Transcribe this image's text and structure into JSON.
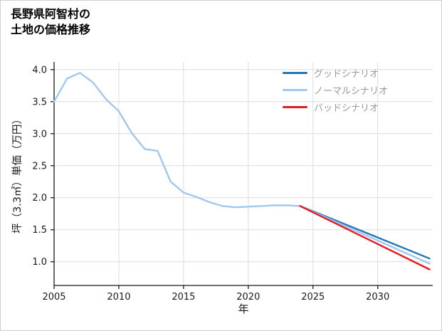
{
  "figure": {
    "title_lines": [
      "長野県阿智村の",
      "土地の価格推移"
    ]
  },
  "chart_data": {
    "type": "line",
    "title": "長野県阿智村の土地の価格推移",
    "xlabel": "年",
    "ylabel": "坪（3.3㎡）単価（万円）",
    "xlim": [
      2005,
      2034.25
    ],
    "ylim": [
      0.63,
      4.12
    ],
    "x_ticks": [
      2005,
      2010,
      2015,
      2020,
      2025,
      2030
    ],
    "y_ticks": [
      1.0,
      1.5,
      2.0,
      2.5,
      3.0,
      3.5,
      4.0
    ],
    "grid": true,
    "legend_position": "top-right",
    "colors": {
      "grid": "#dcdcdc",
      "axis": "#1a1a1a",
      "text": "#1a1a1a",
      "legend_text": "#999999"
    },
    "series": [
      {
        "id": "history",
        "color": "#a0c8f0",
        "x": [
          2005,
          2006,
          2007,
          2008,
          2009,
          2010,
          2011,
          2012,
          2013,
          2014,
          2015,
          2016,
          2017,
          2018,
          2019,
          2020,
          2021,
          2022,
          2023,
          2024
        ],
        "y": [
          3.5,
          3.86,
          3.95,
          3.8,
          3.54,
          3.35,
          3.01,
          2.76,
          2.73,
          2.25,
          2.08,
          2.01,
          1.93,
          1.87,
          1.85,
          1.86,
          1.87,
          1.88,
          1.88,
          1.87
        ]
      },
      {
        "id": "good",
        "label": "グッドシナリオ",
        "color": "#1f77b4",
        "x": [
          2024,
          2034
        ],
        "y": [
          1.87,
          1.05
        ]
      },
      {
        "id": "normal",
        "label": "ノーマルシナリオ",
        "color": "#a0c8f0",
        "x": [
          2024,
          2034
        ],
        "y": [
          1.87,
          0.97
        ]
      },
      {
        "id": "bad",
        "label": "バッドシナリオ",
        "color": "#e71a21",
        "x": [
          2024,
          2034
        ],
        "y": [
          1.87,
          0.88
        ]
      }
    ],
    "legend": [
      {
        "label": "グッドシナリオ",
        "color": "#1f77b4"
      },
      {
        "label": "ノーマルシナリオ",
        "color": "#a0c8f0"
      },
      {
        "label": "バッドシナリオ",
        "color": "#e71a21"
      }
    ]
  }
}
